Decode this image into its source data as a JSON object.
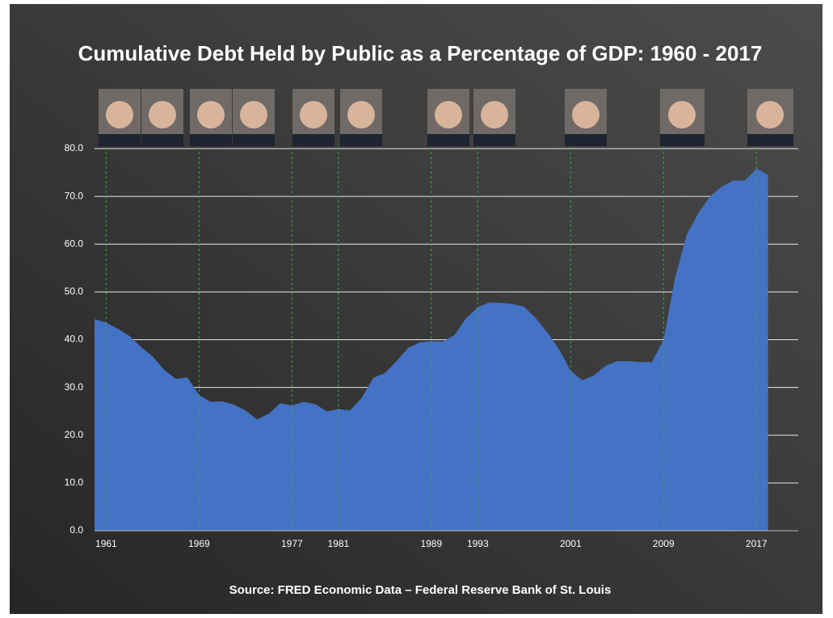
{
  "chart_data": {
    "type": "area",
    "title": "Cumulative Debt Held by Public as a Percentage of GDP: 1960 - 2017",
    "source": "Source:  FRED Economic Data – Federal Reserve  Bank of St. Louis",
    "x": [
      1960,
      1961,
      1962,
      1963,
      1964,
      1965,
      1966,
      1967,
      1968,
      1969,
      1970,
      1971,
      1972,
      1973,
      1974,
      1975,
      1976,
      1977,
      1978,
      1979,
      1980,
      1981,
      1982,
      1983,
      1984,
      1985,
      1986,
      1987,
      1988,
      1989,
      1990,
      1991,
      1992,
      1993,
      1994,
      1995,
      1996,
      1997,
      1998,
      1999,
      2000,
      2001,
      2002,
      2003,
      2004,
      2005,
      2006,
      2007,
      2008,
      2009,
      2010,
      2011,
      2012,
      2013,
      2014,
      2015,
      2016,
      2017,
      2018
    ],
    "values": [
      44.3,
      43.6,
      42.3,
      40.8,
      38.5,
      36.5,
      33.7,
      31.8,
      32.1,
      28.4,
      27.0,
      27.1,
      26.4,
      25.2,
      23.3,
      24.5,
      26.7,
      26.2,
      27.0,
      26.5,
      25.0,
      25.5,
      25.2,
      27.8,
      32.0,
      33.0,
      35.5,
      38.3,
      39.4,
      39.7,
      39.6,
      41.0,
      44.5,
      46.8,
      47.8,
      47.7,
      47.5,
      46.9,
      44.5,
      41.5,
      38.0,
      33.5,
      31.5,
      32.5,
      34.5,
      35.5,
      35.5,
      35.3,
      35.3,
      40.0,
      53.0,
      62.0,
      66.5,
      70.0,
      72.0,
      73.3,
      73.3,
      75.8,
      74.5
    ],
    "color": "#4472c4",
    "xlim": [
      1960,
      2020.6
    ],
    "xticks": [
      1961,
      1969,
      1977,
      1981,
      1989,
      1993,
      2001,
      2009,
      2017
    ],
    "ylim": [
      0,
      80
    ],
    "yticks": [
      {
        "value": 0,
        "label": "0.0"
      },
      {
        "value": 10,
        "label": "10.0"
      },
      {
        "value": 20,
        "label": "20.0"
      },
      {
        "value": 30,
        "label": "30.0"
      },
      {
        "value": 40,
        "label": "40.0"
      },
      {
        "value": 50,
        "label": "50.0"
      },
      {
        "value": 60,
        "label": "60.0"
      },
      {
        "value": 70,
        "label": "70.0"
      },
      {
        "value": 80,
        "label": "80.0"
      }
    ],
    "grid": true
  }
}
